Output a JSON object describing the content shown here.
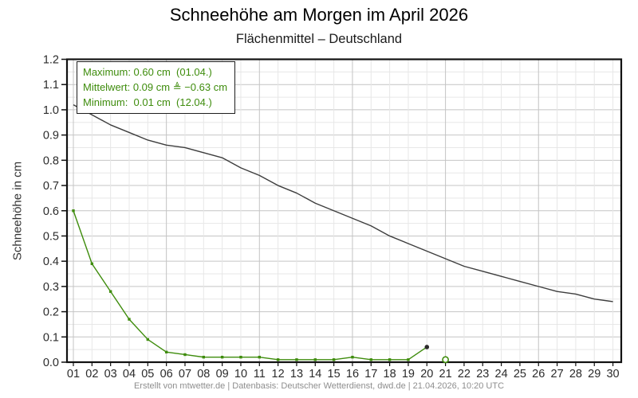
{
  "header": {
    "title": "Schneehöhe am Morgen im April 2026",
    "subtitle": "Flächenmittel – Deutschland"
  },
  "stats": {
    "maximum": "Maximum: 0.60 cm  (01.04.)",
    "mittelwert": "Mittelwert: 0.09 cm ≜ −0.63 cm",
    "minimum": "Minimum:  0.01 cm  (12.04.)",
    "text_color": "#3e8c0c"
  },
  "footer": {
    "text": "Erstellt von mtwetter.de | Datenbasis: Deutscher Wetterdienst, dwd.de | 21.04.2026, 10:20 UTC"
  },
  "chart_data": {
    "type": "line",
    "title": "Schneehöhe am Morgen im April 2026",
    "subtitle": "Flächenmittel – Deutschland",
    "xlabel": "",
    "ylabel": "Schneehöhe in cm",
    "ylim": [
      0,
      1.2
    ],
    "y_major_step": 0.1,
    "y_minor_step": 0.05,
    "x_major_step": 5,
    "grid": true,
    "x_labels": [
      "01",
      "02",
      "03",
      "04",
      "05",
      "06",
      "07",
      "08",
      "09",
      "10",
      "11",
      "12",
      "13",
      "14",
      "15",
      "16",
      "17",
      "18",
      "19",
      "20",
      "21",
      "22",
      "23",
      "24",
      "25",
      "26",
      "27",
      "28",
      "29",
      "30"
    ],
    "series": [
      {
        "name": "schneehoehe-april-2026",
        "color": "#3e8c0c",
        "marker": "square",
        "days": [
          1,
          2,
          3,
          4,
          5,
          6,
          7,
          8,
          9,
          10,
          11,
          12,
          13,
          14,
          15,
          16,
          17,
          18,
          19,
          20
        ],
        "values": [
          0.6,
          0.39,
          0.28,
          0.17,
          0.09,
          0.04,
          0.03,
          0.02,
          0.02,
          0.02,
          0.02,
          0.01,
          0.01,
          0.01,
          0.01,
          0.02,
          0.01,
          0.01,
          0.01,
          0.06
        ]
      },
      {
        "name": "vergleichs-mittelwert",
        "color": "#3d3d3d",
        "marker": "none",
        "days": [
          1,
          2,
          3,
          4,
          5,
          6,
          7,
          8,
          9,
          10,
          11,
          12,
          13,
          14,
          15,
          16,
          17,
          18,
          19,
          20,
          21,
          22,
          23,
          24,
          25,
          26,
          27,
          28,
          29,
          30
        ],
        "values": [
          1.02,
          0.98,
          0.94,
          0.91,
          0.88,
          0.86,
          0.85,
          0.83,
          0.81,
          0.77,
          0.74,
          0.7,
          0.67,
          0.63,
          0.6,
          0.57,
          0.54,
          0.5,
          0.47,
          0.44,
          0.41,
          0.38,
          0.36,
          0.34,
          0.32,
          0.3,
          0.28,
          0.27,
          0.25,
          0.24
        ]
      }
    ],
    "special_points": [
      {
        "name": "letzter-messwert",
        "day": 20,
        "value": 0.06,
        "style": "dot-dark",
        "color": "#2b2b2b"
      },
      {
        "name": "aktueller-tag-vorlaeufig",
        "day": 21,
        "value": 0.01,
        "style": "open-circle",
        "color": "#3e8c0c"
      }
    ],
    "colors": {
      "frame": "#111111",
      "grid_major": "#c4c4c4",
      "grid_minor": "#e7e7e7",
      "tick_label": "#2b2b2b"
    }
  }
}
